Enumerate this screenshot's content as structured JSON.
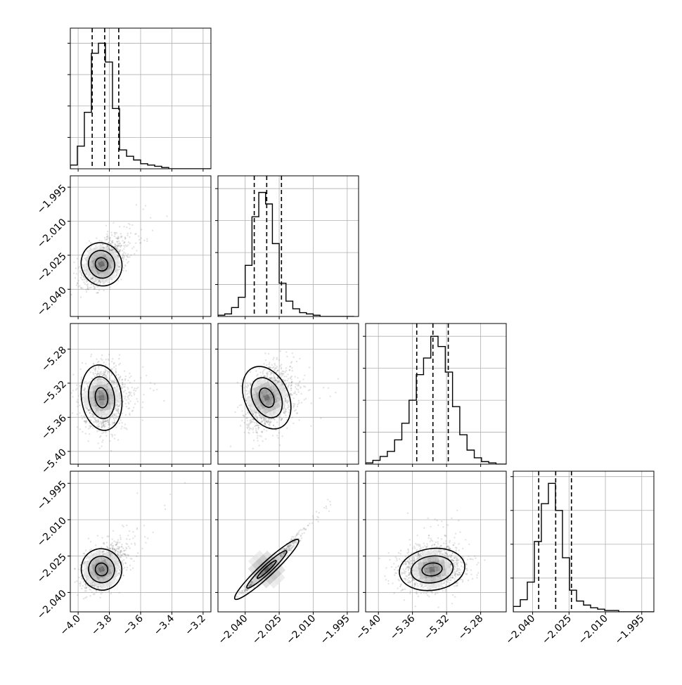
{
  "chart_data": {
    "type": "corner",
    "colors": {
      "axis": "#000000",
      "grid": "#b0b0b0",
      "samples": "#808080",
      "contour": "#000000",
      "quantile": "#000000"
    },
    "grid": true,
    "variables": [
      {
        "range": [
          -4.05,
          -3.15
        ],
        "ticks": [
          -4.0,
          -3.8,
          -3.6,
          -3.4,
          -3.2
        ],
        "tick_labels": [
          "−4.0",
          "−3.8",
          "−3.6",
          "−3.4",
          "−3.2"
        ]
      },
      {
        "range": [
          -2.052,
          -1.99
        ],
        "ticks": [
          -2.04,
          -2.025,
          -2.01,
          -1.995
        ],
        "tick_labels": [
          "−2.040",
          "−2.025",
          "−2.010",
          "−1.995"
        ]
      },
      {
        "range": [
          -5.415,
          -5.25
        ],
        "ticks": [
          -5.4,
          -5.36,
          -5.32,
          -5.28
        ],
        "tick_labels": [
          "−5.40",
          "−5.36",
          "−5.32",
          "−5.28"
        ]
      },
      {
        "range": [
          -2.048,
          -1.99
        ],
        "ticks": [
          -2.04,
          -2.025,
          -2.01,
          -1.995
        ],
        "tick_labels": [
          "−2.040",
          "−2.025",
          "−2.010",
          "−1.995"
        ]
      }
    ],
    "left_axis_tick_labels": {
      "1": [
        "−1.995",
        "−2.010",
        "−2.025",
        "−2.040"
      ],
      "2": [
        "−5.28",
        "−5.32",
        "−5.36",
        "−5.40"
      ],
      "3": [
        "−1.995",
        "−2.010",
        "−2.025",
        "−2.040"
      ]
    },
    "histograms": [
      {
        "bins": [
          -4.05,
          -4.005,
          -3.96,
          -3.915,
          -3.87,
          -3.825,
          -3.78,
          -3.735,
          -3.69,
          -3.645,
          -3.6,
          -3.555,
          -3.51,
          -3.465,
          -3.42,
          -3.375,
          -3.33,
          -3.285,
          -3.24,
          -3.195,
          -3.15
        ],
        "counts": [
          3,
          18,
          45,
          92,
          100,
          85,
          48,
          15,
          10,
          7,
          4,
          3,
          2,
          1,
          0,
          0,
          0,
          0,
          0,
          0
        ],
        "ymax": 112,
        "quantiles": [
          -3.91,
          -3.83,
          -3.74
        ]
      },
      {
        "bins": [
          -2.052,
          -2.049,
          -2.046,
          -2.043,
          -2.04,
          -2.037,
          -2.034,
          -2.031,
          -2.028,
          -2.025,
          -2.022,
          -2.019,
          -2.016,
          -2.013,
          -2.01,
          -2.007,
          -2.004,
          -2.001,
          -1.998,
          -1.995,
          -1.992
        ],
        "counts": [
          1,
          2,
          7,
          15,
          40,
          78,
          97,
          88,
          57,
          26,
          12,
          6,
          3,
          2,
          1,
          0,
          0,
          0,
          0,
          0
        ],
        "ymax": 110,
        "quantiles": [
          -2.036,
          -2.0305,
          -2.024
        ]
      },
      {
        "bins": [
          -5.415,
          -5.4065,
          -5.398,
          -5.3895,
          -5.381,
          -5.3725,
          -5.364,
          -5.3555,
          -5.347,
          -5.3385,
          -5.33,
          -5.3215,
          -5.313,
          -5.3045,
          -5.296,
          -5.2875,
          -5.279,
          -5.2705,
          -5.262,
          -5.2535,
          -5.245
        ],
        "counts": [
          1,
          3,
          6,
          10,
          19,
          32,
          50,
          70,
          83,
          100,
          92,
          72,
          45,
          23,
          11,
          5,
          2,
          1,
          0,
          0
        ],
        "ymax": 110,
        "quantiles": [
          -5.355,
          -5.336,
          -5.318
        ]
      },
      {
        "bins": [
          -2.048,
          -2.0451,
          -2.0422,
          -2.0393,
          -2.0364,
          -2.0335,
          -2.0306,
          -2.0277,
          -2.0248,
          -2.0219,
          -2.019,
          -2.0161,
          -2.0132,
          -2.0103,
          -2.0074,
          -2.0045,
          -2.0016,
          -1.9987,
          -1.9958,
          -1.9929,
          -1.99
        ],
        "counts": [
          4,
          9,
          22,
          52,
          80,
          95,
          75,
          40,
          16,
          8,
          5,
          3,
          2,
          1,
          1,
          0,
          0,
          0,
          0,
          0
        ],
        "ymax": 104,
        "quantiles": [
          -2.0375,
          -2.0305,
          -2.024
        ]
      }
    ],
    "pairs": [
      {
        "row": 1,
        "col": 0,
        "center": [
          -3.85,
          -2.029
        ],
        "sd": [
          0.06,
          0.0045
        ],
        "corr": 0.3,
        "skew": [
          0.07,
          0.006
        ]
      },
      {
        "row": 2,
        "col": 0,
        "center": [
          -3.85,
          -5.337
        ],
        "sd": [
          0.06,
          0.018
        ],
        "corr": 0.05,
        "skew": [
          0.07,
          0.0
        ]
      },
      {
        "row": 2,
        "col": 1,
        "center": [
          -2.0305,
          -5.337
        ],
        "sd": [
          0.0045,
          0.018
        ],
        "corr": 0.3,
        "skew": [
          0.006,
          0.0
        ]
      },
      {
        "row": 3,
        "col": 0,
        "center": [
          -3.85,
          -2.0305
        ],
        "sd": [
          0.06,
          0.004
        ],
        "corr": 0.3,
        "skew": [
          0.07,
          0.006
        ]
      },
      {
        "row": 3,
        "col": 1,
        "center": [
          -2.0305,
          -2.0305
        ],
        "sd": [
          0.0045,
          0.004
        ],
        "corr": 0.97,
        "skew": [
          0.006,
          0.006
        ]
      },
      {
        "row": 3,
        "col": 2,
        "center": [
          -5.337,
          -2.0305
        ],
        "sd": [
          0.018,
          0.004
        ],
        "corr": 0.1,
        "skew": [
          0.0,
          0.006
        ]
      }
    ]
  }
}
